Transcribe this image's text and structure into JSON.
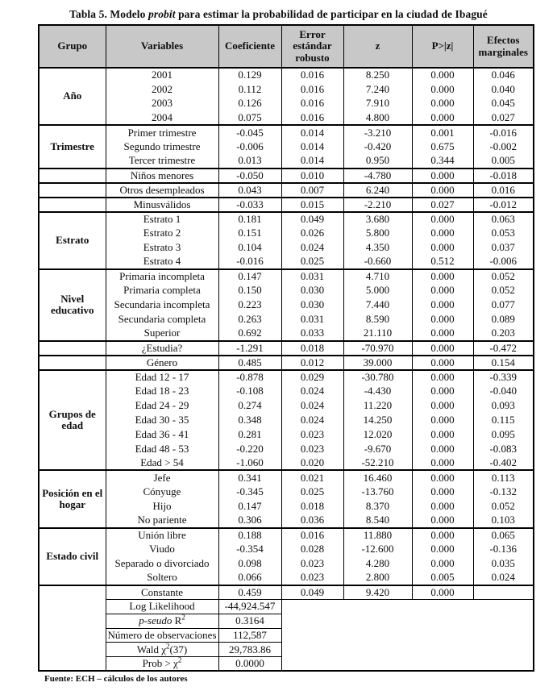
{
  "page": {
    "title_parts": [
      {
        "text": "Tabla 5. Modelo "
      },
      {
        "text": "probit",
        "italic": true
      },
      {
        "text": " para estimar la probabilidad de participar en la ciudad de Ibagué"
      }
    ],
    "footer": "Fuente: ECH – cálculos de los autores"
  },
  "table": {
    "header_color": "#c8c8c8",
    "headers": [
      "Grupo",
      "Variables",
      "Coeficiente",
      "Error estándar robusto",
      "z",
      "P>|z|",
      "Efectos marginales"
    ],
    "sections": [
      {
        "group": "Año",
        "rows": [
          [
            "2001",
            "0.129",
            "0.016",
            "8.250",
            "0.000",
            "0.046"
          ],
          [
            "2002",
            "0.112",
            "0.016",
            "7.240",
            "0.000",
            "0.040"
          ],
          [
            "2003",
            "0.126",
            "0.016",
            "7.910",
            "0.000",
            "0.045"
          ],
          [
            "2004",
            "0.075",
            "0.016",
            "4.800",
            "0.000",
            "0.027"
          ]
        ]
      },
      {
        "group": "Trimestre",
        "rows": [
          [
            "Primer trimestre",
            "-0.045",
            "0.014",
            "-3.210",
            "0.001",
            "-0.016"
          ],
          [
            "Segundo trimestre",
            "-0.006",
            "0.014",
            "-0.420",
            "0.675",
            "-0.002"
          ],
          [
            "Tercer trimestre",
            "0.013",
            "0.014",
            "0.950",
            "0.344",
            "0.005"
          ]
        ]
      },
      {
        "group": "",
        "rows": [
          [
            "Niños menores",
            "-0.050",
            "0.010",
            "-4.780",
            "0.000",
            "-0.018"
          ]
        ]
      },
      {
        "group": "",
        "rows": [
          [
            "Otros desempleados",
            "0.043",
            "0.007",
            "6.240",
            "0.000",
            "0.016"
          ]
        ]
      },
      {
        "group": "",
        "rows": [
          [
            "Minusválidos",
            "-0.033",
            "0.015",
            "-2.210",
            "0.027",
            "-0.012"
          ]
        ]
      },
      {
        "group": "Estrato",
        "rows": [
          [
            "Estrato 1",
            "0.181",
            "0.049",
            "3.680",
            "0.000",
            "0.063"
          ],
          [
            "Estrato 2",
            "0.151",
            "0.026",
            "5.800",
            "0.000",
            "0.053"
          ],
          [
            "Estrato 3",
            "0.104",
            "0.024",
            "4.350",
            "0.000",
            "0.037"
          ],
          [
            "Estrato 4",
            "-0.016",
            "0.025",
            "-0.660",
            "0.512",
            "-0.006"
          ]
        ]
      },
      {
        "group": "Nivel educativo",
        "rows": [
          [
            "Primaria incompleta",
            "0.147",
            "0.031",
            "4.710",
            "0.000",
            "0.052"
          ],
          [
            "Primaria completa",
            "0.150",
            "0.030",
            "5.000",
            "0.000",
            "0.052"
          ],
          [
            "Secundaria incompleta",
            "0.223",
            "0.030",
            "7.440",
            "0.000",
            "0.077"
          ],
          [
            "Secundaria completa",
            "0.263",
            "0.031",
            "8.590",
            "0.000",
            "0.089"
          ],
          [
            "Superior",
            "0.692",
            "0.033",
            "21.110",
            "0.000",
            "0.203"
          ]
        ]
      },
      {
        "group": "",
        "rows": [
          [
            "¿Estudia?",
            "-1.291",
            "0.018",
            "-70.970",
            "0.000",
            "-0.472"
          ]
        ]
      },
      {
        "group": "",
        "rows": [
          [
            "Género",
            "0.485",
            "0.012",
            "39.000",
            "0.000",
            "0.154"
          ]
        ]
      },
      {
        "group": "Grupos de edad",
        "rows": [
          [
            "Edad 12 - 17",
            "-0.878",
            "0.029",
            "-30.780",
            "0.000",
            "-0.339"
          ],
          [
            "Edad 18 - 23",
            "-0.108",
            "0.024",
            "-4.430",
            "0.000",
            "-0.040"
          ],
          [
            "Edad 24 - 29",
            "0.274",
            "0.024",
            "11.220",
            "0.000",
            "0.093"
          ],
          [
            "Edad 30 - 35",
            "0.348",
            "0.024",
            "14.250",
            "0.000",
            "0.115"
          ],
          [
            "Edad 36 - 41",
            "0.281",
            "0.023",
            "12.020",
            "0.000",
            "0.095"
          ],
          [
            "Edad 48 - 53",
            "-0.220",
            "0.023",
            "-9.670",
            "0.000",
            "-0.083"
          ],
          [
            "Edad > 54",
            "-1.060",
            "0.020",
            "-52.210",
            "0.000",
            "-0.402"
          ]
        ]
      },
      {
        "group": "Posición en el hogar",
        "rows": [
          [
            "Jefe",
            "0.341",
            "0.021",
            "16.460",
            "0.000",
            "0.113"
          ],
          [
            "Cónyuge",
            "-0.345",
            "0.025",
            "-13.760",
            "0.000",
            "-0.132"
          ],
          [
            "Hijo",
            "0.147",
            "0.018",
            "8.370",
            "0.000",
            "0.052"
          ],
          [
            "No pariente",
            "0.306",
            "0.036",
            "8.540",
            "0.000",
            "0.103"
          ]
        ]
      },
      {
        "group": "Estado civil",
        "rows": [
          [
            "Unión libre",
            "0.188",
            "0.016",
            "11.880",
            "0.000",
            "0.065"
          ],
          [
            "Viudo",
            "-0.354",
            "0.028",
            "-12.600",
            "0.000",
            "-0.136"
          ],
          [
            "Separado o divorciado",
            "0.098",
            "0.023",
            "4.280",
            "0.000",
            "0.035"
          ],
          [
            "Soltero",
            "0.066",
            "0.023",
            "2.800",
            "0.005",
            "0.024"
          ]
        ]
      }
    ],
    "constante": [
      "Constante",
      "0.459",
      "0.049",
      "9.420",
      "0.000",
      ""
    ],
    "summary": [
      {
        "label_parts": [
          {
            "text": "Log Likelihood"
          }
        ],
        "value": "-44,924.547"
      },
      {
        "label_parts": [
          {
            "text": "p-seudo",
            "italic": true
          },
          {
            "text": " R"
          },
          {
            "text": "2",
            "sup": true
          }
        ],
        "value": "0.3164"
      },
      {
        "label_parts": [
          {
            "text": "Número de observaciones"
          }
        ],
        "value": "112,587"
      },
      {
        "label_parts": [
          {
            "text": "Wald χ"
          },
          {
            "text": "2",
            "sup": true
          },
          {
            "text": "(37)"
          }
        ],
        "value": "29,783.86"
      },
      {
        "label_parts": [
          {
            "text": "Prob > χ"
          },
          {
            "text": "2",
            "sup": true
          }
        ],
        "value": "0.0000"
      }
    ]
  }
}
